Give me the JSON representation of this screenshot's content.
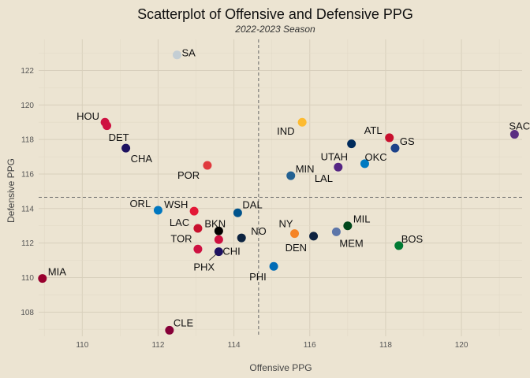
{
  "chart_data": {
    "type": "scatter",
    "title": "Scatterplot of Offensive and Defensive PPG",
    "subtitle": "2022-2023 Season",
    "xlabel": "Offensive PPG",
    "ylabel": "Defensive PPG",
    "xlim": [
      108.85,
      121.6
    ],
    "ylim": [
      106.6,
      123.8
    ],
    "xticks": [
      110,
      112,
      114,
      116,
      118,
      120
    ],
    "yticks": [
      108,
      110,
      112,
      114,
      116,
      118,
      120,
      122
    ],
    "reference_lines": {
      "x_mean": 114.65,
      "y_mean": 114.65
    },
    "grid": true,
    "points": [
      {
        "team": "SA",
        "x": 112.5,
        "y": 122.9,
        "color": "#c4ced4",
        "dx": 6,
        "dy": 2
      },
      {
        "team": "HOU",
        "x": 110.6,
        "y": 119.0,
        "color": "#ce1141",
        "dx": -36,
        "dy": -3
      },
      {
        "team": "",
        "x": 110.65,
        "y": 118.8,
        "color": "#ce1141",
        "dx": 0,
        "dy": 0
      },
      {
        "team": "DET",
        "x": 111.15,
        "y": 117.5,
        "color": "#1d1160",
        "dx": -22,
        "dy": -9
      },
      {
        "team": "CHA",
        "x": 111.15,
        "y": 117.5,
        "color": "#1d1160",
        "dx": 6,
        "dy": 18
      },
      {
        "team": "POR",
        "x": 113.3,
        "y": 116.5,
        "color": "#e03a3e",
        "dx": -38,
        "dy": 17
      },
      {
        "team": "IND",
        "x": 115.8,
        "y": 119.0,
        "color": "#fdbb30",
        "dx": -32,
        "dy": 16
      },
      {
        "team": "UTAH",
        "x": 117.1,
        "y": 117.75,
        "color": "#002b5c",
        "dx": -39,
        "dy": 21
      },
      {
        "team": "ATL",
        "x": 118.1,
        "y": 118.1,
        "color": "#c8102e",
        "dx": -32,
        "dy": -5
      },
      {
        "team": "GS",
        "x": 118.25,
        "y": 117.5,
        "color": "#1d428a",
        "dx": 6,
        "dy": -4
      },
      {
        "team": "SAC",
        "x": 121.4,
        "y": 118.3,
        "color": "#5a2d81",
        "dx": -7,
        "dy": -6
      },
      {
        "team": "MIN",
        "x": 115.5,
        "y": 115.9,
        "color": "#236192",
        "dx": 6,
        "dy": -4
      },
      {
        "team": "LAL",
        "x": 116.75,
        "y": 116.4,
        "color": "#552583",
        "dx": -30,
        "dy": 19
      },
      {
        "team": "OKC",
        "x": 117.45,
        "y": 116.6,
        "color": "#007ac1",
        "dx": 0,
        "dy": -4
      },
      {
        "team": "ORL",
        "x": 112.0,
        "y": 113.9,
        "color": "#0077c0",
        "dx": -36,
        "dy": -4
      },
      {
        "team": "WSH",
        "x": 112.95,
        "y": 113.85,
        "color": "#e31837",
        "dx": -38,
        "dy": -4
      },
      {
        "team": "DAL",
        "x": 114.1,
        "y": 113.75,
        "color": "#00538c",
        "dx": 6,
        "dy": -6
      },
      {
        "team": "LAC",
        "x": 113.05,
        "y": 112.85,
        "color": "#c8102e",
        "dx": -36,
        "dy": -3
      },
      {
        "team": "BKN",
        "x": 113.6,
        "y": 112.7,
        "color": "#000000",
        "dx": -18,
        "dy": -5
      },
      {
        "team": "NO",
        "x": 114.2,
        "y": 112.3,
        "color": "#0c2340",
        "dx": 12,
        "dy": -4
      },
      {
        "team": "TOR",
        "x": 113.6,
        "y": 112.2,
        "color": "#ce1141",
        "dx": -61,
        "dy": 3
      },
      {
        "team": "",
        "x": 113.05,
        "y": 111.65,
        "color": "#ce1141",
        "dx": 0,
        "dy": 0
      },
      {
        "team": "CHI",
        "x": 113.6,
        "y": 111.5,
        "color": "#1d1160",
        "dx": 5,
        "dy": 4
      },
      {
        "team": "PHX",
        "x": 113.6,
        "y": 111.5,
        "color": "#1d1160",
        "dx": -32,
        "dy": 24
      },
      {
        "team": "NY",
        "x": 115.6,
        "y": 112.55,
        "color": "#f58426",
        "dx": -20,
        "dy": -8
      },
      {
        "team": "DEN",
        "x": 116.1,
        "y": 112.4,
        "color": "#0e2240",
        "dx": -36,
        "dy": 19
      },
      {
        "team": "MEM",
        "x": 116.7,
        "y": 112.65,
        "color": "#5d76a9",
        "dx": 4,
        "dy": 19
      },
      {
        "team": "MIL",
        "x": 117.0,
        "y": 113.0,
        "color": "#00471b",
        "dx": 7,
        "dy": -4
      },
      {
        "team": "BOS",
        "x": 118.35,
        "y": 111.85,
        "color": "#007a33",
        "dx": 3,
        "dy": -4
      },
      {
        "team": "PHI",
        "x": 115.05,
        "y": 110.65,
        "color": "#006bb6",
        "dx": -31,
        "dy": 18
      },
      {
        "team": "MIA",
        "x": 108.95,
        "y": 109.95,
        "color": "#98002e",
        "dx": 7,
        "dy": -4
      },
      {
        "team": "CLE",
        "x": 112.3,
        "y": 106.95,
        "color": "#860038",
        "dx": 5,
        "dy": -5
      }
    ]
  }
}
